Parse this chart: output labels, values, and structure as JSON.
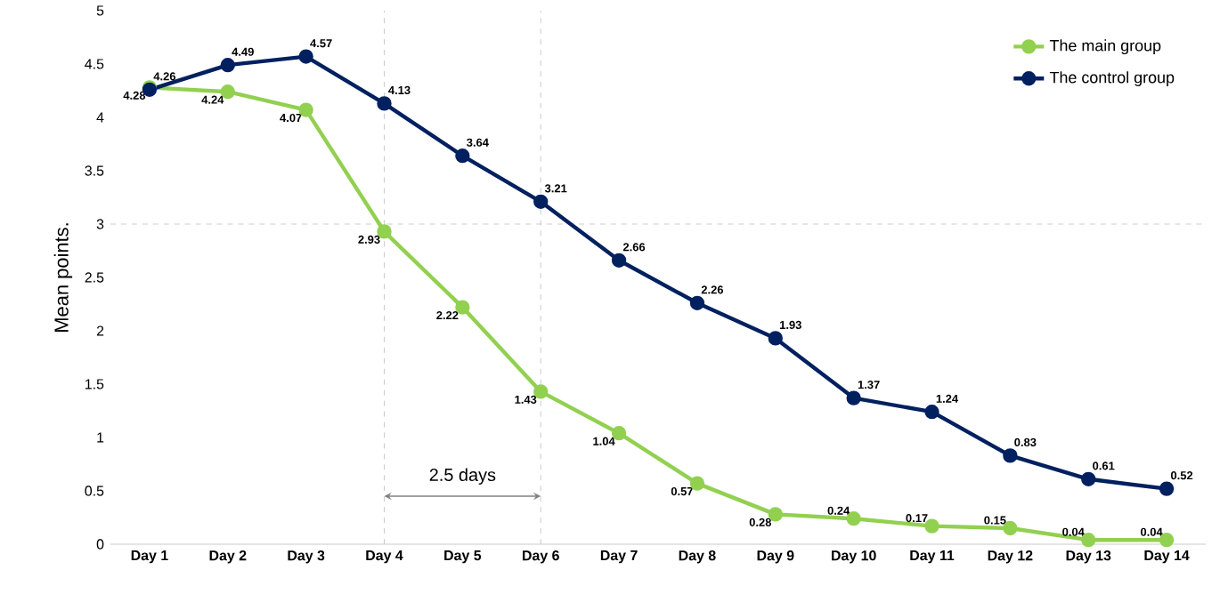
{
  "chart_data": {
    "type": "line",
    "ylabel": "Mean points.",
    "categories": [
      "Day 1",
      "Day 2",
      "Day 3",
      "Day 4",
      "Day 5",
      "Day 6",
      "Day 7",
      "Day 8",
      "Day 9",
      "Day 10",
      "Day 11",
      "Day 12",
      "Day 13",
      "Day 14"
    ],
    "series": [
      {
        "name": "The main group",
        "color": "#92d050",
        "values": [
          4.28,
          4.24,
          4.07,
          2.93,
          2.22,
          1.43,
          1.04,
          0.57,
          0.28,
          0.24,
          0.17,
          0.15,
          0.04,
          0.04
        ]
      },
      {
        "name": "The control group",
        "color": "#002060",
        "values": [
          4.26,
          4.49,
          4.57,
          4.13,
          3.64,
          3.21,
          2.66,
          2.26,
          1.93,
          1.37,
          1.24,
          0.83,
          0.61,
          0.52
        ]
      }
    ],
    "ylim": [
      0,
      5
    ],
    "yticks": [
      0,
      0.5,
      1,
      1.5,
      2,
      2.5,
      3,
      3.5,
      4,
      4.5,
      5
    ],
    "ref_lines": [
      {
        "axis": "y",
        "value": 3,
        "color": "#bfbfbf",
        "line_style": "dashed"
      },
      {
        "axis": "x",
        "value": "Day 4",
        "color": "#bfbfbf",
        "line_style": "dashed"
      },
      {
        "axis": "x",
        "value": "Day 6",
        "color": "#bfbfbf",
        "line_style": "dashed"
      }
    ],
    "annotations": [
      "2.5 days"
    ],
    "data_labels": true,
    "legend": "top right",
    "marker": "circle",
    "line_style": "solid",
    "grid": false
  }
}
